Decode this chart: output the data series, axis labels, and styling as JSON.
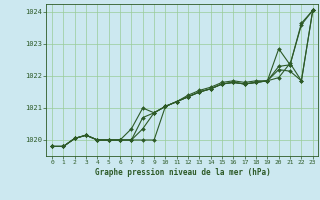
{
  "background_color": "#cce8f0",
  "grid_color": "#99cc99",
  "line_color": "#2d5a27",
  "text_color": "#2d5a27",
  "xlabel": "Graphe pression niveau de la mer (hPa)",
  "xlim": [
    -0.5,
    23.5
  ],
  "ylim": [
    1019.5,
    1024.25
  ],
  "yticks": [
    1020,
    1021,
    1022,
    1023,
    1024
  ],
  "xticks": [
    0,
    1,
    2,
    3,
    4,
    5,
    6,
    7,
    8,
    9,
    10,
    11,
    12,
    13,
    14,
    15,
    16,
    17,
    18,
    19,
    20,
    21,
    22,
    23
  ],
  "series": [
    [
      1019.8,
      1019.8,
      1020.05,
      1020.15,
      1020.0,
      1020.0,
      1020.0,
      1020.0,
      1020.0,
      1020.0,
      1021.05,
      1021.2,
      1021.35,
      1021.5,
      1021.6,
      1021.75,
      1021.8,
      1021.75,
      1021.8,
      1021.85,
      1021.95,
      1022.4,
      1021.85,
      1024.05
    ],
    [
      1019.8,
      1019.8,
      1020.05,
      1020.15,
      1020.0,
      1020.0,
      1020.0,
      1020.0,
      1020.35,
      1020.85,
      1021.05,
      1021.2,
      1021.35,
      1021.5,
      1021.6,
      1021.75,
      1021.8,
      1021.75,
      1021.8,
      1021.85,
      1022.2,
      1022.15,
      1021.85,
      1024.05
    ],
    [
      1019.8,
      1019.8,
      1020.05,
      1020.15,
      1020.0,
      1020.0,
      1020.0,
      1020.0,
      1020.7,
      1020.85,
      1021.05,
      1021.2,
      1021.35,
      1021.5,
      1021.6,
      1021.75,
      1021.8,
      1021.75,
      1021.8,
      1021.85,
      1022.3,
      1022.35,
      1023.65,
      1024.05
    ],
    [
      1019.8,
      1019.8,
      1020.05,
      1020.15,
      1020.0,
      1020.0,
      1020.0,
      1020.35,
      1021.0,
      1020.85,
      1021.05,
      1021.2,
      1021.4,
      1021.55,
      1021.65,
      1021.8,
      1021.85,
      1021.8,
      1021.85,
      1021.85,
      1022.85,
      1022.35,
      1023.6,
      1024.05
    ]
  ]
}
